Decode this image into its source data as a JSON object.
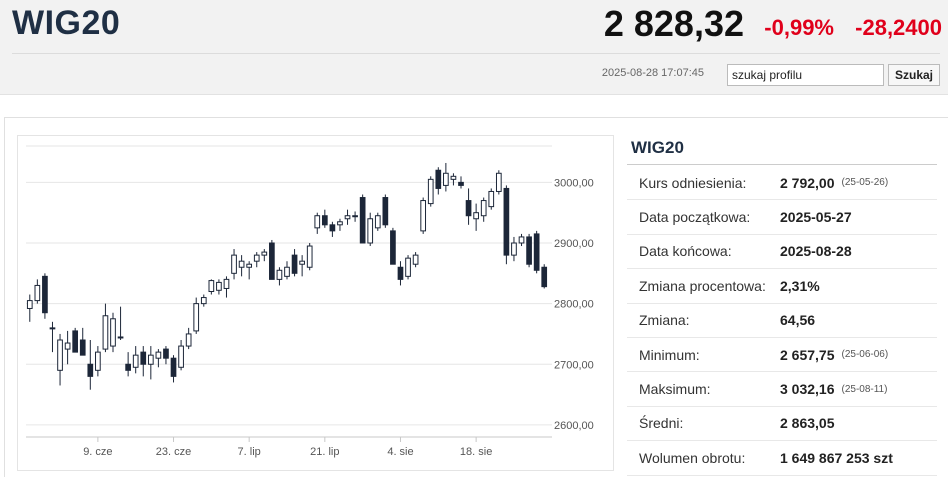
{
  "header": {
    "title": "WIG20",
    "price": "2 828,32",
    "change_pct": "-0,99%",
    "change_abs": "-28,2400",
    "timestamp": "2025-08-28 17:07:45",
    "search_value": "szukaj profilu",
    "search_button": "Szukaj"
  },
  "colors": {
    "negative": "#e0001b",
    "title": "#1f2f44",
    "candle_down": "#1c2638",
    "candle_up": "#ffffff"
  },
  "side": {
    "title": "WIG20",
    "rows": [
      {
        "label": "Kurs odniesienia:",
        "value": "2 792,00",
        "date": "(25-05-26)"
      },
      {
        "label": "Data początkowa:",
        "value": "2025-05-27",
        "date": ""
      },
      {
        "label": "Data końcowa:",
        "value": "2025-08-28",
        "date": ""
      },
      {
        "label": "Zmiana procentowa:",
        "value": "2,31%",
        "date": ""
      },
      {
        "label": "Zmiana:",
        "value": "64,56",
        "date": ""
      },
      {
        "label": "Minimum:",
        "value": "2 657,75",
        "date": "(25-06-06)"
      },
      {
        "label": "Maksimum:",
        "value": "3 032,16",
        "date": "(25-08-11)"
      },
      {
        "label": "Średni:",
        "value": "2 863,05",
        "date": ""
      },
      {
        "label": "Wolumen obrotu:",
        "value": "1 649 867 253 szt",
        "date": ""
      }
    ]
  },
  "chart_data": {
    "type": "candlestick",
    "ylim": [
      2580,
      3060
    ],
    "yticks": [
      "2600,00",
      "2700,00",
      "2800,00",
      "2900,00",
      "3000,00"
    ],
    "ytick_values": [
      2600,
      2700,
      2800,
      2900,
      3000
    ],
    "xticks": [
      "9. cze",
      "23. cze",
      "7. lip",
      "21. lip",
      "4. sie",
      "18. sie"
    ],
    "xtick_index": [
      9,
      19,
      29,
      39,
      49,
      59
    ],
    "candles": [
      {
        "o": 2792,
        "h": 2815,
        "l": 2770,
        "c": 2805
      },
      {
        "o": 2805,
        "h": 2840,
        "l": 2800,
        "c": 2830
      },
      {
        "o": 2845,
        "h": 2850,
        "l": 2775,
        "c": 2785
      },
      {
        "o": 2760,
        "h": 2770,
        "l": 2720,
        "c": 2760
      },
      {
        "o": 2690,
        "h": 2750,
        "l": 2665,
        "c": 2740
      },
      {
        "o": 2725,
        "h": 2755,
        "l": 2700,
        "c": 2735
      },
      {
        "o": 2755,
        "h": 2760,
        "l": 2720,
        "c": 2720
      },
      {
        "o": 2740,
        "h": 2760,
        "l": 2715,
        "c": 2715
      },
      {
        "o": 2700,
        "h": 2740,
        "l": 2658,
        "c": 2680
      },
      {
        "o": 2690,
        "h": 2730,
        "l": 2680,
        "c": 2720
      },
      {
        "o": 2725,
        "h": 2800,
        "l": 2720,
        "c": 2780
      },
      {
        "o": 2730,
        "h": 2785,
        "l": 2720,
        "c": 2775
      },
      {
        "o": 2745,
        "h": 2795,
        "l": 2740,
        "c": 2745
      },
      {
        "o": 2700,
        "h": 2720,
        "l": 2680,
        "c": 2690
      },
      {
        "o": 2695,
        "h": 2730,
        "l": 2685,
        "c": 2715
      },
      {
        "o": 2720,
        "h": 2730,
        "l": 2680,
        "c": 2700
      },
      {
        "o": 2700,
        "h": 2730,
        "l": 2675,
        "c": 2715
      },
      {
        "o": 2710,
        "h": 2725,
        "l": 2695,
        "c": 2720
      },
      {
        "o": 2725,
        "h": 2730,
        "l": 2700,
        "c": 2710
      },
      {
        "o": 2710,
        "h": 2715,
        "l": 2670,
        "c": 2680
      },
      {
        "o": 2695,
        "h": 2740,
        "l": 2690,
        "c": 2730
      },
      {
        "o": 2730,
        "h": 2760,
        "l": 2725,
        "c": 2750
      },
      {
        "o": 2755,
        "h": 2810,
        "l": 2750,
        "c": 2800
      },
      {
        "o": 2800,
        "h": 2815,
        "l": 2795,
        "c": 2810
      },
      {
        "o": 2820,
        "h": 2840,
        "l": 2815,
        "c": 2838
      },
      {
        "o": 2822,
        "h": 2840,
        "l": 2815,
        "c": 2835
      },
      {
        "o": 2825,
        "h": 2845,
        "l": 2810,
        "c": 2840
      },
      {
        "o": 2850,
        "h": 2890,
        "l": 2840,
        "c": 2880
      },
      {
        "o": 2860,
        "h": 2880,
        "l": 2845,
        "c": 2870
      },
      {
        "o": 2860,
        "h": 2870,
        "l": 2840,
        "c": 2865
      },
      {
        "o": 2870,
        "h": 2885,
        "l": 2860,
        "c": 2880
      },
      {
        "o": 2880,
        "h": 2890,
        "l": 2870,
        "c": 2885
      },
      {
        "o": 2900,
        "h": 2905,
        "l": 2840,
        "c": 2840
      },
      {
        "o": 2840,
        "h": 2860,
        "l": 2830,
        "c": 2855
      },
      {
        "o": 2845,
        "h": 2870,
        "l": 2840,
        "c": 2860
      },
      {
        "o": 2880,
        "h": 2890,
        "l": 2845,
        "c": 2850
      },
      {
        "o": 2865,
        "h": 2880,
        "l": 2845,
        "c": 2870
      },
      {
        "o": 2860,
        "h": 2900,
        "l": 2855,
        "c": 2895
      },
      {
        "o": 2925,
        "h": 2950,
        "l": 2915,
        "c": 2945
      },
      {
        "o": 2945,
        "h": 2955,
        "l": 2925,
        "c": 2930
      },
      {
        "o": 2930,
        "h": 2935,
        "l": 2910,
        "c": 2920
      },
      {
        "o": 2930,
        "h": 2940,
        "l": 2920,
        "c": 2935
      },
      {
        "o": 2940,
        "h": 2955,
        "l": 2930,
        "c": 2945
      },
      {
        "o": 2945,
        "h": 2952,
        "l": 2935,
        "c": 2945
      },
      {
        "o": 2975,
        "h": 2980,
        "l": 2900,
        "c": 2900
      },
      {
        "o": 2900,
        "h": 2950,
        "l": 2895,
        "c": 2940
      },
      {
        "o": 2925,
        "h": 2950,
        "l": 2920,
        "c": 2945
      },
      {
        "o": 2975,
        "h": 2980,
        "l": 2925,
        "c": 2930
      },
      {
        "o": 2920,
        "h": 2925,
        "l": 2865,
        "c": 2865
      },
      {
        "o": 2860,
        "h": 2870,
        "l": 2830,
        "c": 2840
      },
      {
        "o": 2845,
        "h": 2880,
        "l": 2840,
        "c": 2875
      },
      {
        "o": 2865,
        "h": 2885,
        "l": 2860,
        "c": 2880
      },
      {
        "o": 2920,
        "h": 2975,
        "l": 2915,
        "c": 2970
      },
      {
        "o": 2965,
        "h": 3010,
        "l": 2960,
        "c": 3005
      },
      {
        "o": 3020,
        "h": 3025,
        "l": 2980,
        "c": 2990
      },
      {
        "o": 2995,
        "h": 3032,
        "l": 2985,
        "c": 3015
      },
      {
        "o": 3005,
        "h": 3015,
        "l": 2995,
        "c": 3010
      },
      {
        "o": 3000,
        "h": 3010,
        "l": 2990,
        "c": 2995
      },
      {
        "o": 2970,
        "h": 2990,
        "l": 2930,
        "c": 2945
      },
      {
        "o": 2940,
        "h": 2965,
        "l": 2920,
        "c": 2950
      },
      {
        "o": 2945,
        "h": 2975,
        "l": 2935,
        "c": 2970
      },
      {
        "o": 2960,
        "h": 2990,
        "l": 2955,
        "c": 2985
      },
      {
        "o": 2985,
        "h": 3020,
        "l": 2980,
        "c": 3015
      },
      {
        "o": 2990,
        "h": 2995,
        "l": 2865,
        "c": 2880
      },
      {
        "o": 2880,
        "h": 2910,
        "l": 2870,
        "c": 2900
      },
      {
        "o": 2900,
        "h": 2915,
        "l": 2895,
        "c": 2910
      },
      {
        "o": 2910,
        "h": 2915,
        "l": 2860,
        "c": 2865
      },
      {
        "o": 2915,
        "h": 2920,
        "l": 2850,
        "c": 2855
      },
      {
        "o": 2860,
        "h": 2865,
        "l": 2825,
        "c": 2828
      }
    ]
  }
}
